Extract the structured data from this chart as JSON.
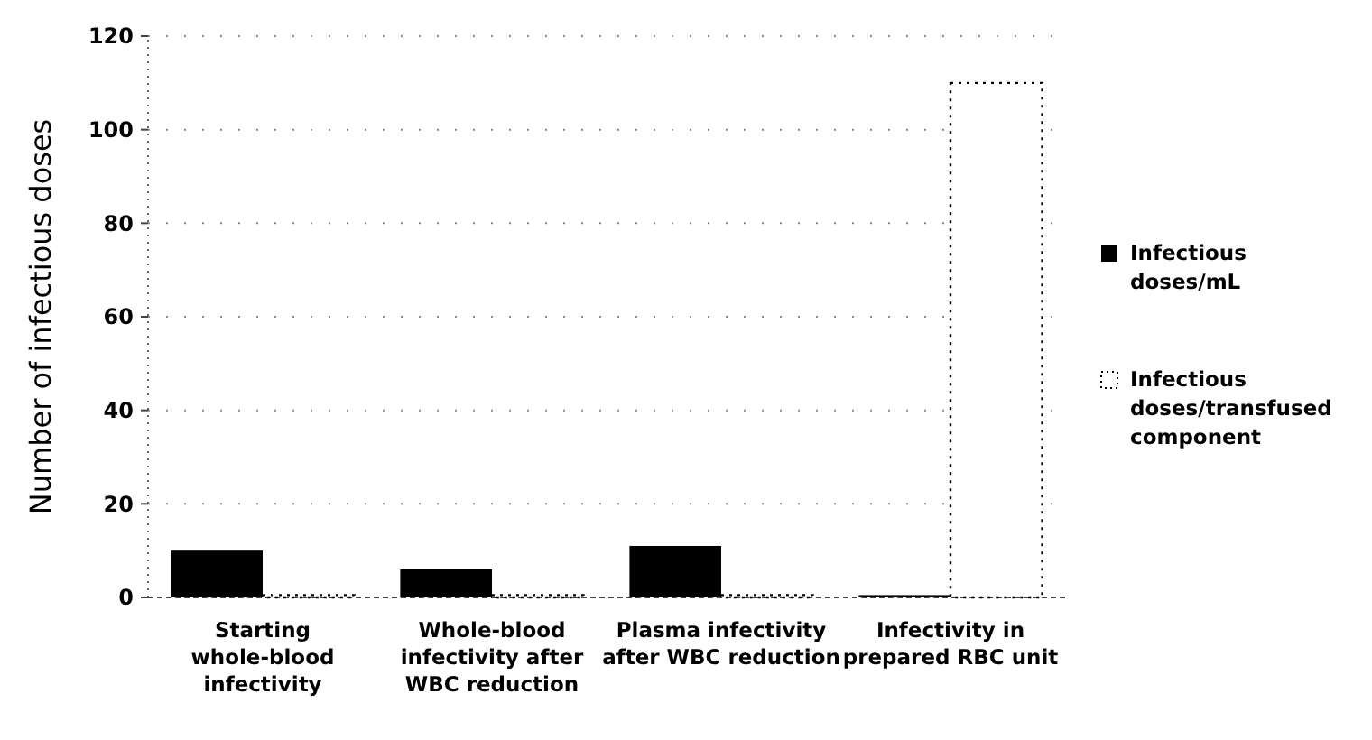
{
  "chart_data": {
    "type": "bar",
    "ylabel": "Number of infectious doses",
    "categories": [
      "Starting whole-blood infectivity",
      "Whole-blood infectivity after WBC reduction",
      "Plasma infectivity after WBC reduction",
      "Infectivity in prepared RBC unit"
    ],
    "series": [
      {
        "name": "Infectious doses/mL",
        "color": "#000000",
        "values": [
          10,
          6,
          11,
          0.5
        ]
      },
      {
        "name": "Infectious doses/transfused component",
        "color": "#ffffff",
        "values": [
          0.5,
          0.5,
          0.5,
          110
        ]
      }
    ],
    "ylim": [
      0,
      120
    ],
    "yticks": [
      0,
      20,
      40,
      60,
      80,
      100,
      120
    ],
    "grid": "y",
    "legend": "right"
  }
}
